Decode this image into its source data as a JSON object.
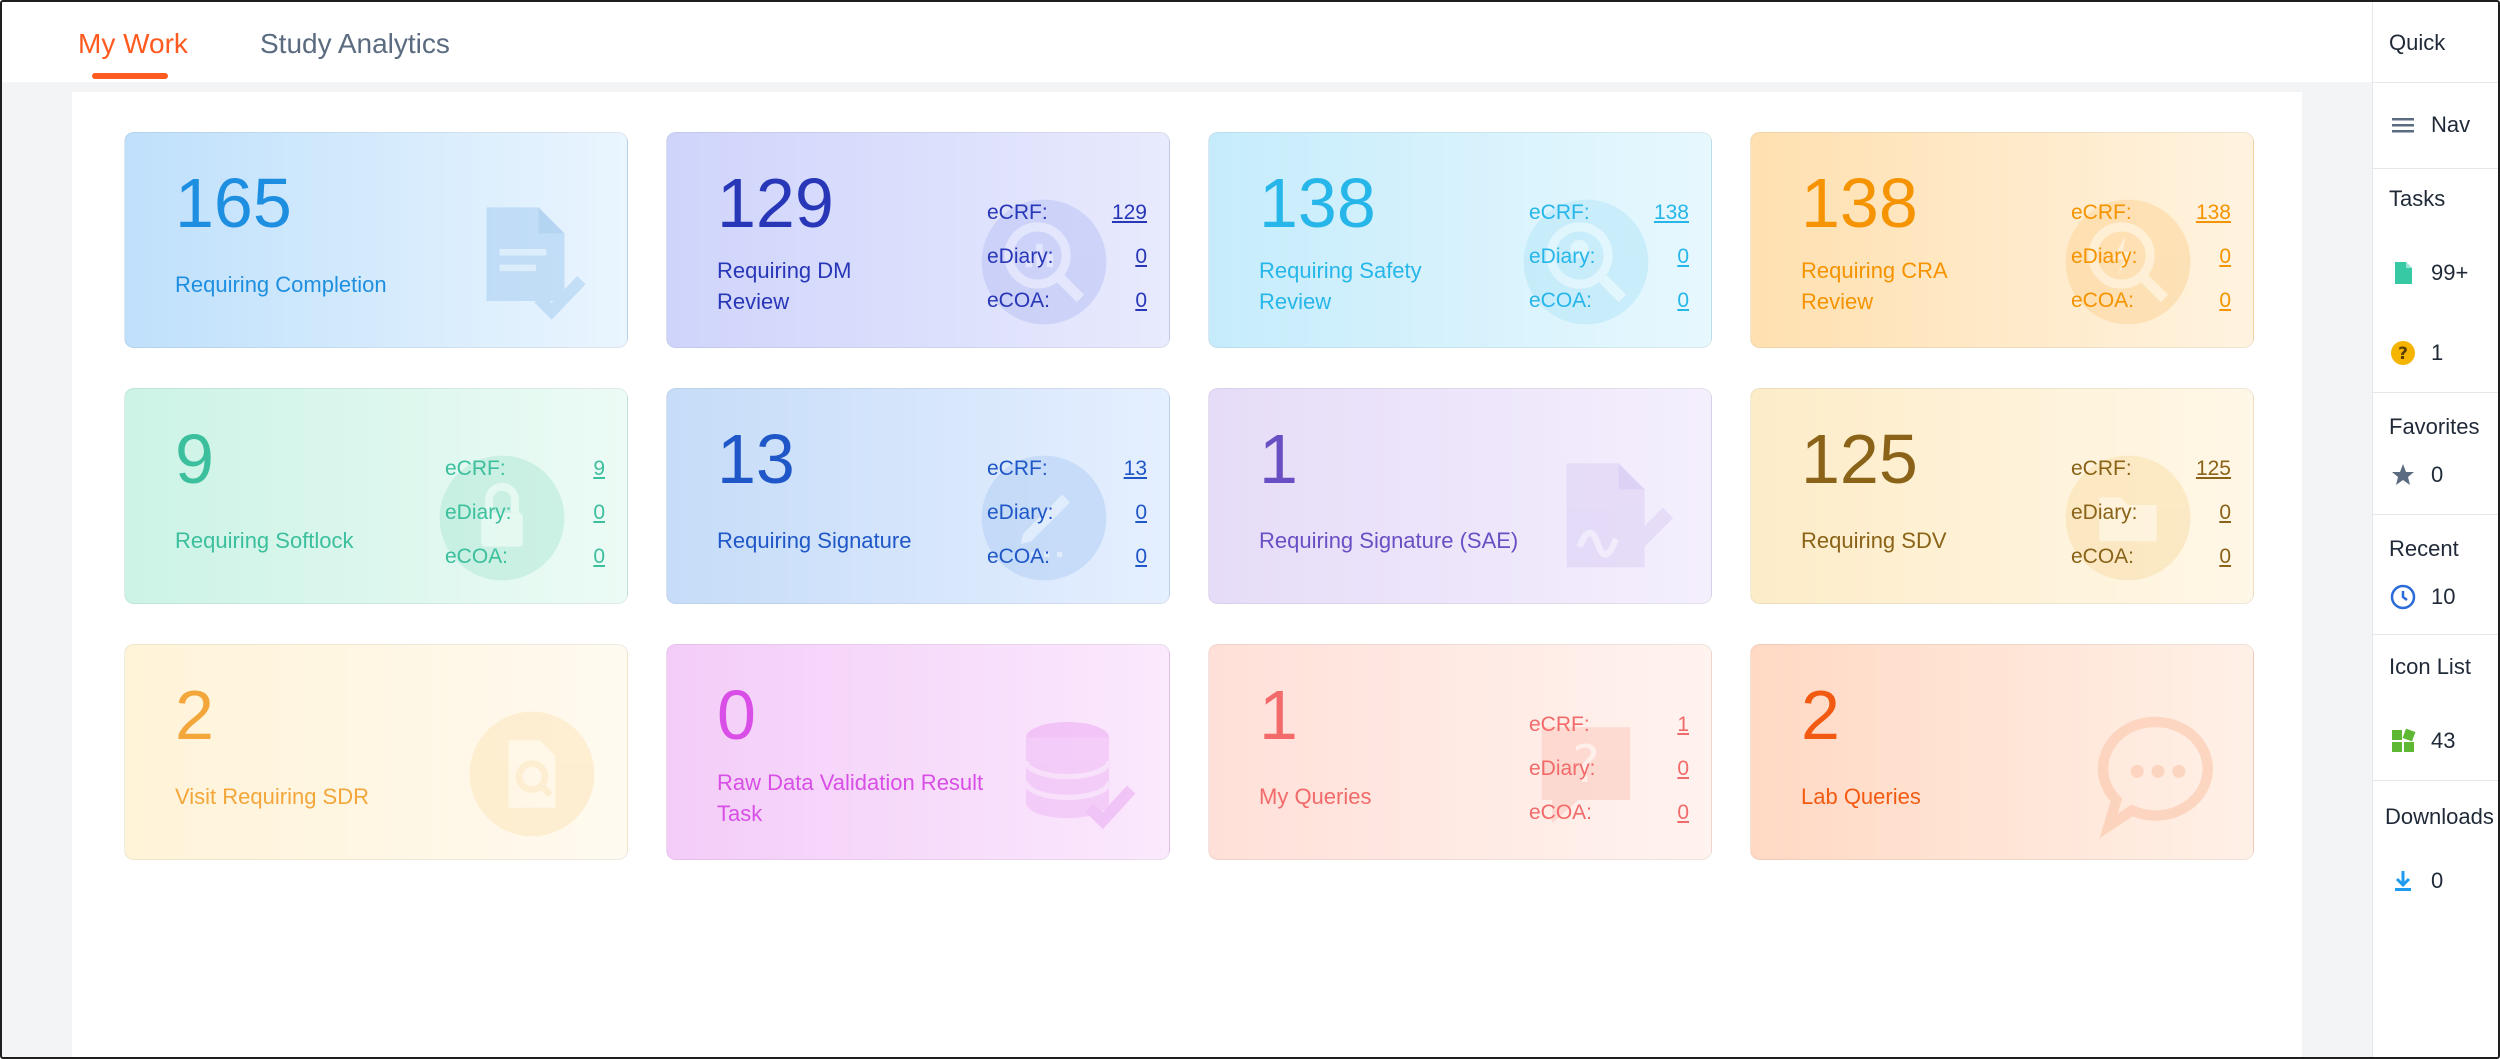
{
  "tabs": [
    {
      "label": "My Work",
      "active": true
    },
    {
      "label": "Study Analytics",
      "active": false
    }
  ],
  "cards": [
    {
      "value": "165",
      "label": "Requiring Completion",
      "icon": "document-check-icon",
      "color": "#1e8fe0",
      "bg": [
        "#bfe0fb",
        "#eaf5fe"
      ]
    },
    {
      "value": "129",
      "label": "Requiring DM Review",
      "icon": "search-chart-icon",
      "color": "#2836b8",
      "bg": [
        "#cfd4fb",
        "#e8eafd"
      ],
      "breakdown": {
        "ecrf": "129",
        "ediary": "0",
        "ecoa": "0"
      }
    },
    {
      "value": "138",
      "label": "Requiring Safety Review",
      "icon": "search-person-icon",
      "color": "#27b6ea",
      "bg": [
        "#c6ecfb",
        "#e7f8fe"
      ],
      "breakdown": {
        "ecrf": "138",
        "ediary": "0",
        "ecoa": "0"
      }
    },
    {
      "value": "138",
      "label": "Requiring CRA Review",
      "icon": "search-bolt-icon",
      "color": "#f59300",
      "bg": [
        "#ffe0b0",
        "#fff3e0"
      ],
      "breakdown": {
        "ecrf": "138",
        "ediary": "0",
        "ecoa": "0"
      }
    },
    {
      "value": "9",
      "label": "Requiring Softlock",
      "icon": "lock-icon",
      "color": "#3bbf9d",
      "bg": [
        "#ccf3e6",
        "#ecfbf5"
      ],
      "breakdown": {
        "ecrf": "9",
        "ediary": "0",
        "ecoa": "0"
      }
    },
    {
      "value": "13",
      "label": "Requiring Signature",
      "icon": "pen-icon",
      "color": "#1f57c8",
      "bg": [
        "#c6dcf8",
        "#e5efff"
      ],
      "breakdown": {
        "ecrf": "13",
        "ediary": "0",
        "ecoa": "0"
      }
    },
    {
      "value": "1",
      "label": "Requiring Signature (SAE)",
      "icon": "signature-icon",
      "color": "#6a4fc4",
      "bg": [
        "#e6dcf8",
        "#f4effd"
      ]
    },
    {
      "value": "125",
      "label": "Requiring SDV",
      "icon": "folder-icon",
      "color": "#8a6318",
      "bg": [
        "#fdecc8",
        "#fff7e7"
      ],
      "breakdown": {
        "ecrf": "125",
        "ediary": "0",
        "ecoa": "0"
      }
    },
    {
      "value": "2",
      "label": "Visit Requiring SDR",
      "icon": "file-search-icon",
      "color": "#f3a63a",
      "bg": [
        "#fff3d8",
        "#fffaf0"
      ]
    },
    {
      "value": "0",
      "label": "Raw Data Validation Result Task",
      "icon": "database-check-icon",
      "color": "#d84ee6",
      "bg": [
        "#f3cdf8",
        "#fbe9fd"
      ]
    },
    {
      "value": "1",
      "label": "My Queries",
      "icon": "question-bubble-icon",
      "color": "#f26a6a",
      "bg": [
        "#ffe0d8",
        "#fff3ef"
      ],
      "breakdown": {
        "ecrf": "1",
        "ediary": "0",
        "ecoa": "0"
      }
    },
    {
      "value": "2",
      "label": "Lab Queries",
      "icon": "chat-bubble-icon",
      "color": "#f25a12",
      "bg": [
        "#ffd9c4",
        "#fff0e7"
      ]
    }
  ],
  "breakdown_labels": {
    "ecrf": "eCRF:",
    "ediary": "eDiary:",
    "ecoa": "eCOA:"
  },
  "quick_nav": {
    "title": "Quick",
    "nav_label": "Nav",
    "tasks_title": "Tasks",
    "tasks_docs_count": "99+",
    "tasks_questions_count": "1",
    "favorites_title": "Favorites",
    "favorites_count": "0",
    "recent_title": "Recent",
    "recent_count": "10",
    "icon_list_title": "Icon List",
    "icon_list_count": "43",
    "downloads_title": "Downloads",
    "downloads_count": "0"
  },
  "colors": {
    "accent": "#ff5a1f",
    "tab_inactive": "#5b6b80"
  }
}
